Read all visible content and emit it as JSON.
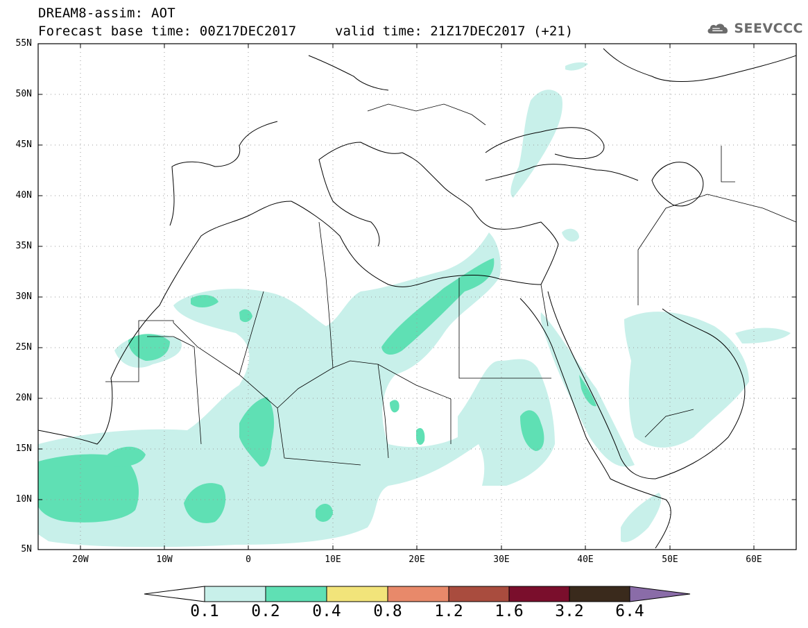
{
  "header": {
    "line1": "DREAM8-assim: AOT",
    "line2": "Forecast base time: 00Z17DEC2017",
    "valid_time": "valid time: 21Z17DEC2017 (+21)"
  },
  "logo": {
    "text": "SEEVCCC",
    "icon": "cloud-icon",
    "color": "#6b6b6b"
  },
  "map": {
    "region": "North Africa, Europe, Middle East",
    "lon_range": [
      -25,
      65
    ],
    "lat_range": [
      5,
      55
    ],
    "grid": "dotted"
  },
  "axes": {
    "lat_labels": [
      "55N",
      "50N",
      "45N",
      "40N",
      "35N",
      "30N",
      "25N",
      "20N",
      "15N",
      "10N",
      "5N"
    ],
    "lon_labels": [
      "20W",
      "10W",
      "0",
      "10E",
      "20E",
      "30E",
      "40E",
      "50E",
      "60E"
    ]
  },
  "colorbar": {
    "labels": [
      "0.1",
      "0.2",
      "0.4",
      "0.8",
      "1.2",
      "1.6",
      "3.2",
      "6.4"
    ],
    "colors": [
      "#ffffff",
      "#c8f0ea",
      "#5fe0b4",
      "#f2e47a",
      "#e8896a",
      "#a94c3e",
      "#7a0e2c",
      "#3a2a1c",
      "#8a6ca8"
    ]
  },
  "field_colors": {
    "low": "#c8f0ea",
    "mid": "#5fe0b4"
  }
}
